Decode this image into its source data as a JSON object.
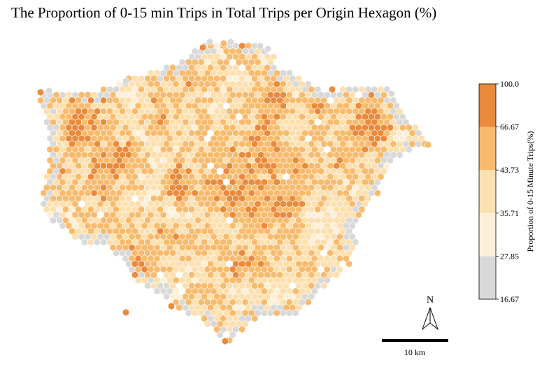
{
  "title": "The Proportion of 0-15 min Trips in Total Trips per Origin Hexagon (%)",
  "legend": {
    "label": "Proportion of 0-15 Minute Trips(%)",
    "bins": [
      {
        "min": "16.67",
        "max": "27.85",
        "color": "#d9d9d9"
      },
      {
        "min": "27.85",
        "max": "35.71",
        "color": "#fdf0d8"
      },
      {
        "min": "35.71",
        "max": "43.73",
        "color": "#fde0b0"
      },
      {
        "min": "43.73",
        "max": "66.67",
        "color": "#f8bb6e"
      },
      {
        "min": "66.67",
        "max": "100.0",
        "color": "#e98a3c"
      }
    ],
    "ticks": [
      "100.0",
      "66.67",
      "43.73",
      "35.71",
      "27.85",
      "16.67"
    ]
  },
  "north_arrow": {
    "label": "N"
  },
  "scale_bar": {
    "label": "10 km"
  },
  "hex_stroke": "#ffffff"
}
